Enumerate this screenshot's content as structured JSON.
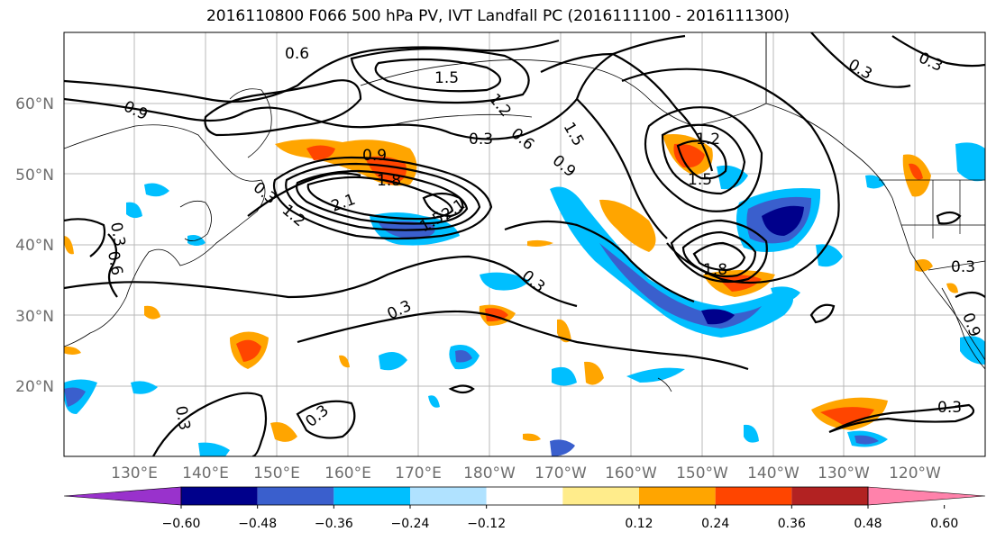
{
  "title": "2016110800 F066 500 hPa PV, IVT Landfall PC (2016111100 - 2016111300)",
  "map": {
    "lat_labels": [
      "60°N",
      "50°N",
      "40°N",
      "30°N",
      "20°N"
    ],
    "lon_labels": [
      "130°E",
      "140°E",
      "150°E",
      "160°E",
      "170°E",
      "180°W",
      "170°W",
      "160°W",
      "150°W",
      "140°W",
      "130°W",
      "120°W"
    ],
    "contour_labels": [
      "0.6",
      "1.5",
      "0.9",
      "1.2",
      "0.3",
      "0.6",
      "0.9",
      "1.5",
      "0.3",
      "0.9",
      "1.8",
      "2.1",
      "2.1",
      "1.5",
      "1.2",
      "1.5",
      "1.2",
      "1.8",
      "0.3",
      "0.3",
      "0.3",
      "0.3",
      "0.3",
      "0.3",
      "0.3",
      "0.9",
      "0.6",
      "0.3",
      "0.3"
    ]
  },
  "colorbar": {
    "ticks": [
      "−0.60",
      "−0.48",
      "−0.36",
      "−0.24",
      "−0.12",
      "0.12",
      "0.24",
      "0.36",
      "0.48",
      "0.60"
    ],
    "colors": [
      "#9932cc",
      "#00008b",
      "#3a5fcd",
      "#00bfff",
      "#b0e2ff",
      "#ffffff",
      "#ffec8b",
      "#ffa500",
      "#ff4500",
      "#b22222",
      "#ff82ab"
    ]
  }
}
